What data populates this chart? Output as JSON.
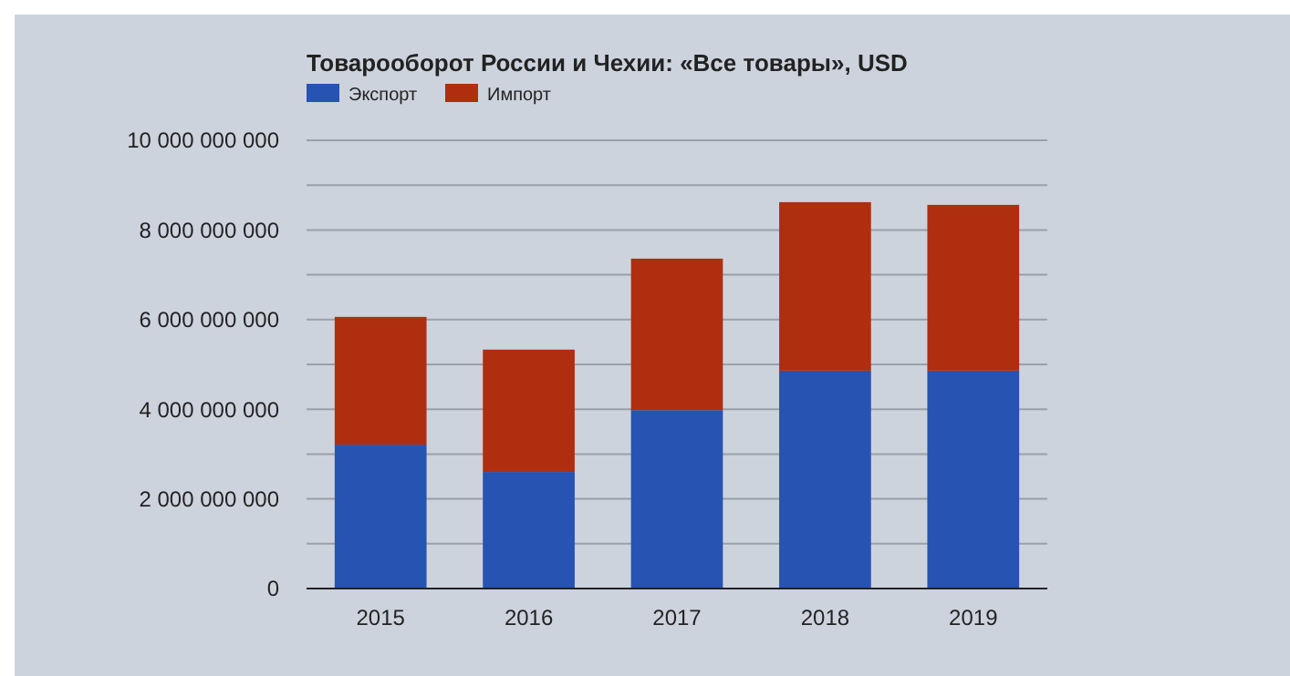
{
  "chart_data": {
    "type": "bar",
    "title": "Товарооборот России и Чехии: «Все товары», USD",
    "categories": [
      "2015",
      "2016",
      "2017",
      "2018",
      "2019"
    ],
    "stacked": true,
    "series": [
      {
        "name": "Экспорт",
        "color": "#2753b3",
        "values": [
          3210000000,
          2600000000,
          3980000000,
          4860000000,
          4860000000
        ]
      },
      {
        "name": "Импорт",
        "color": "#b02e10",
        "values": [
          2850000000,
          2730000000,
          3380000000,
          3760000000,
          3700000000
        ]
      }
    ],
    "ylim": [
      0,
      10000000000
    ],
    "yticks": [
      {
        "value": 0,
        "label": "0"
      },
      {
        "value": 1000000000,
        "label": null
      },
      {
        "value": 2000000000,
        "label": "2 000 000 000"
      },
      {
        "value": 3000000000,
        "label": null
      },
      {
        "value": 4000000000,
        "label": "4 000 000 000"
      },
      {
        "value": 5000000000,
        "label": null
      },
      {
        "value": 6000000000,
        "label": "6 000 000 000"
      },
      {
        "value": 7000000000,
        "label": null
      },
      {
        "value": 8000000000,
        "label": "8 000 000 000"
      },
      {
        "value": 9000000000,
        "label": null
      },
      {
        "value": 10000000000,
        "label": "10 000 000 000"
      }
    ],
    "grid": "y",
    "legend": "top left"
  }
}
